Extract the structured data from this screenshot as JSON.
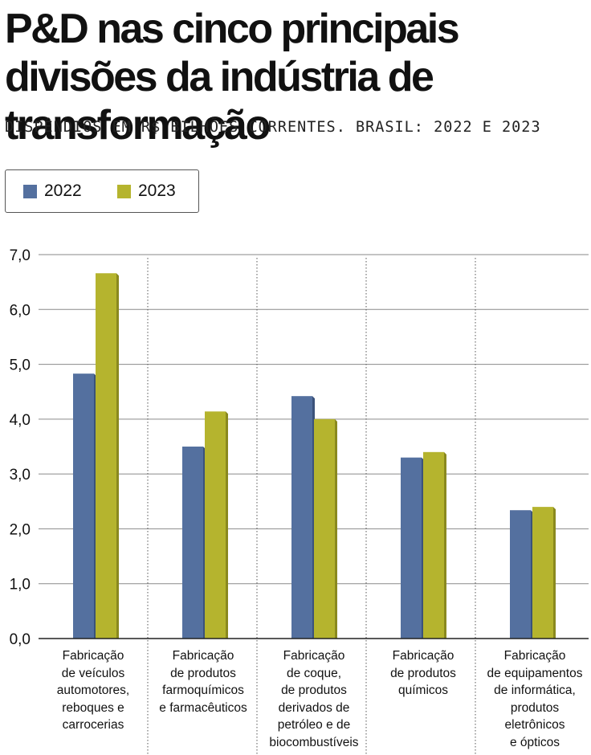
{
  "title": "P&D nas cinco principais divisões da indústria de transformação",
  "subtitle": "DISPÊNDIOS EM R$ BILHÕES CORRENTES. BRASIL: 2022 E 2023",
  "colors": {
    "series_2022": "#54709f",
    "series_2023": "#b5b42e",
    "grid": "#8a8a8a",
    "axis": "#222222"
  },
  "chart_data": {
    "type": "bar",
    "title": "P&D nas cinco principais divisões da indústria de transformação",
    "subtitle": "DISPÊNDIOS EM R$ BILHÕES CORRENTES. BRASIL: 2022 E 2023",
    "categories": [
      "Fabricação\nde veículos\nautomotores,\nreboques e\ncarrocerias",
      "Fabricação\nde produtos\nfarmoquímicos\ne farmacêuticos",
      "Fabricação\nde coque,\nde produtos\nderivados de\npetróleo e de\nbiocombustíveis",
      "Fabricação\nde produtos\nquímicos",
      "Fabricação\nde equipamentos\nde informática,\nprodutos\neletrônicos\ne ópticos"
    ],
    "series": [
      {
        "name": "2022",
        "values": [
          4.83,
          3.5,
          4.42,
          3.3,
          2.34
        ]
      },
      {
        "name": "2023",
        "values": [
          6.66,
          4.14,
          4.0,
          3.4,
          2.4
        ]
      }
    ],
    "ylim": [
      0,
      7
    ],
    "yticks": [
      "0,0",
      "1,0",
      "2,0",
      "3,0",
      "4,0",
      "5,0",
      "6,0",
      "7,0"
    ],
    "xlabel": "",
    "ylabel": "",
    "grid": true,
    "legend_position": "top-left"
  }
}
